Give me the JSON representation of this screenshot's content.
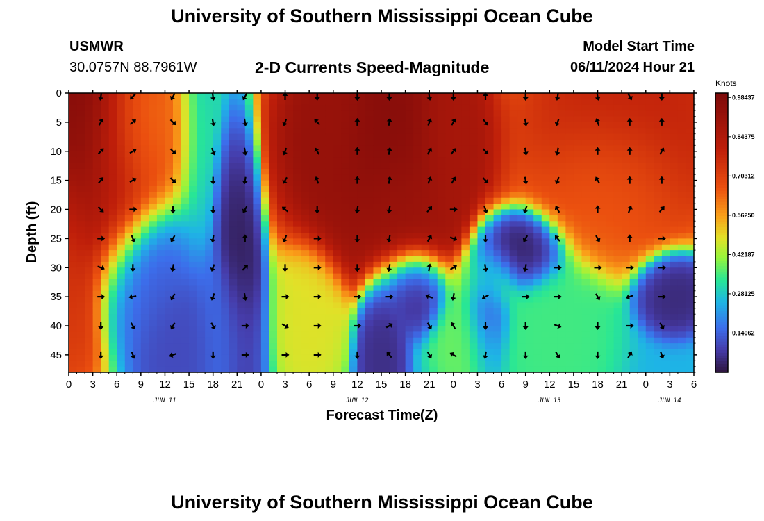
{
  "header": {
    "title": "University of Southern Mississippi Ocean Cube",
    "station": "USMWR",
    "coords": "30.0757N  88.7961W",
    "subtitle": "2-D Currents Speed-Magnitude",
    "model_start_label": "Model Start Time",
    "model_start_value": "06/11/2024 Hour 21"
  },
  "footer": {
    "title": "University of Southern Mississippi Ocean Cube"
  },
  "chart_data": {
    "type": "heatmap",
    "title": "2-D Currents Speed-Magnitude",
    "xlabel": "Forecast Time(Z)",
    "ylabel": "Depth (ft)",
    "colorbar_label": "Knots",
    "colorbar_ticks": [
      "0.98437",
      "0.84375",
      "0.70312",
      "0.56250",
      "0.42187",
      "0.28125",
      "0.14062"
    ],
    "colorbar_values": [
      0.98437,
      0.84375,
      0.70312,
      0.5625,
      0.42187,
      0.28125,
      0.14062
    ],
    "value_range": [
      0,
      1.0
    ],
    "x_range_hours": [
      0,
      78
    ],
    "x_tick_labels": [
      "0",
      "3",
      "6",
      "9",
      "12",
      "15",
      "18",
      "21",
      "0",
      "3",
      "6",
      "9",
      "12",
      "15",
      "18",
      "21",
      "0",
      "3",
      "6",
      "9",
      "12",
      "15",
      "18",
      "21",
      "0",
      "3",
      "6"
    ],
    "date_labels": [
      {
        "label": "JUN 11",
        "hour": 12
      },
      {
        "label": "JUN 12",
        "hour": 36
      },
      {
        "label": "JUN 13",
        "hour": 60
      },
      {
        "label": "JUN 14",
        "hour": 75
      }
    ],
    "y_range_ft": [
      0,
      48
    ],
    "y_tick_labels": [
      "0",
      "5",
      "10",
      "15",
      "20",
      "25",
      "30",
      "35",
      "40",
      "45"
    ],
    "speed_features": [
      {
        "hour": 2,
        "depth": 6,
        "speed": 0.98,
        "sh": 4,
        "sd": 14
      },
      {
        "hour": 0,
        "depth": 30,
        "speed": 0.72,
        "sh": 2,
        "sd": 10
      },
      {
        "hour": 5.5,
        "depth": 14,
        "speed": 0.78,
        "sh": 2,
        "sd": 9
      },
      {
        "hour": 8,
        "depth": 5,
        "speed": 0.58,
        "sh": 2,
        "sd": 8
      },
      {
        "hour": 8.5,
        "depth": 32,
        "speed": 0.12,
        "sh": 2.5,
        "sd": 6
      },
      {
        "hour": 13.5,
        "depth": 44,
        "speed": 0.1,
        "sh": 2.5,
        "sd": 5
      },
      {
        "hour": 21.5,
        "depth": 31,
        "speed": 0.02,
        "sh": 1.2,
        "sd": 12
      },
      {
        "hour": 20,
        "depth": 42,
        "speed": 0.15,
        "sh": 2,
        "sd": 6
      },
      {
        "hour": 39,
        "depth": 8,
        "speed": 0.98,
        "sh": 6,
        "sd": 10
      },
      {
        "hour": 42,
        "depth": 20,
        "speed": 0.9,
        "sh": 4,
        "sd": 6
      },
      {
        "hour": 33.5,
        "depth": 5,
        "speed": 0.9,
        "sh": 2,
        "sd": 8
      },
      {
        "hour": 47,
        "depth": 8,
        "speed": 0.85,
        "sh": 2,
        "sd": 8
      },
      {
        "hour": 30,
        "depth": 40,
        "speed": 0.48,
        "sh": 2,
        "sd": 6
      },
      {
        "hour": 39,
        "depth": 44,
        "speed": 0.05,
        "sh": 1.3,
        "sd": 6
      },
      {
        "hour": 43,
        "depth": 33,
        "speed": 0.02,
        "sh": 2,
        "sd": 3.5
      },
      {
        "hour": 52,
        "depth": 32,
        "speed": 0.4,
        "sh": 2,
        "sd": 3
      },
      {
        "hour": 50,
        "depth": 42,
        "speed": 0.38,
        "sh": 2,
        "sd": 5
      },
      {
        "hour": 52,
        "depth": 36,
        "speed": 0.08,
        "sh": 1.3,
        "sd": 6
      },
      {
        "hour": 56,
        "depth": 27,
        "speed": 0.02,
        "sh": 2.5,
        "sd": 3
      },
      {
        "hour": 61,
        "depth": 42,
        "speed": 0.35,
        "sh": 3,
        "sd": 6
      },
      {
        "hour": 70,
        "depth": 6,
        "speed": 0.8,
        "sh": 6,
        "sd": 9
      },
      {
        "hour": 68,
        "depth": 15,
        "speed": 0.62,
        "sh": 4,
        "sd": 6
      },
      {
        "hour": 75.5,
        "depth": 34,
        "speed": 0.04,
        "sh": 2,
        "sd": 3
      }
    ],
    "arrow_rows_depth": [
      0,
      5,
      10,
      15,
      20,
      25,
      30,
      35,
      40,
      45
    ],
    "arrow_cols_hour": [
      4,
      8,
      13,
      18,
      22,
      27,
      31,
      36,
      40,
      45,
      48,
      52,
      57,
      61,
      66,
      70,
      74
    ],
    "arrow_directions_deg": [
      [
        100,
        135,
        120,
        80,
        120,
        270,
        90,
        90,
        90,
        80,
        90,
        270,
        90,
        100,
        80,
        60,
        90
      ],
      [
        300,
        320,
        45,
        80,
        80,
        110,
        225,
        270,
        280,
        290,
        300,
        50,
        80,
        110,
        250,
        270,
        270
      ],
      [
        315,
        330,
        45,
        70,
        80,
        110,
        240,
        270,
        280,
        300,
        310,
        45,
        80,
        100,
        270,
        270,
        300
      ],
      [
        310,
        330,
        45,
        90,
        100,
        120,
        250,
        270,
        280,
        290,
        300,
        45,
        80,
        110,
        240,
        270,
        270
      ],
      [
        45,
        0,
        90,
        90,
        120,
        220,
        90,
        100,
        100,
        310,
        0,
        70,
        110,
        240,
        270,
        290,
        310
      ],
      [
        0,
        70,
        120,
        100,
        270,
        110,
        0,
        90,
        100,
        300,
        20,
        90,
        120,
        230,
        60,
        270,
        0
      ],
      [
        20,
        90,
        100,
        110,
        315,
        90,
        0,
        90,
        100,
        280,
        330,
        80,
        100,
        0,
        0,
        0,
        0
      ],
      [
        0,
        170,
        120,
        110,
        80,
        0,
        0,
        0,
        0,
        200,
        100,
        150,
        0,
        0,
        60,
        160,
        0
      ],
      [
        90,
        60,
        120,
        60,
        0,
        30,
        0,
        0,
        330,
        60,
        240,
        90,
        90,
        20,
        90,
        0,
        60
      ],
      [
        90,
        70,
        160,
        90,
        0,
        0,
        0,
        90,
        230,
        60,
        210,
        100,
        90,
        60,
        90,
        300,
        70
      ]
    ]
  }
}
